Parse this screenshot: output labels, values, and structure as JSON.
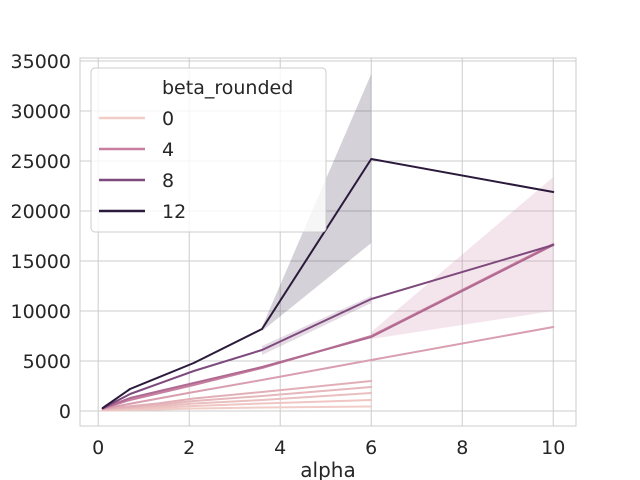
{
  "chart_data": {
    "type": "line",
    "title": "",
    "xlabel": "alpha",
    "ylabel": "",
    "xlim": [
      -0.4,
      10.5
    ],
    "ylim": [
      -1500,
      35300
    ],
    "x_ticks": [
      0,
      2,
      4,
      6,
      8,
      10
    ],
    "y_ticks": [
      0,
      5000,
      10000,
      15000,
      20000,
      25000,
      30000,
      35000
    ],
    "grid": true,
    "legend": {
      "title": "beta_rounded",
      "position": "top-left"
    },
    "series": [
      {
        "name": "0",
        "color": "#f1cdc8",
        "legend": true,
        "x": [
          0.1,
          1.3,
          2.1,
          3.6,
          6.0
        ],
        "y": [
          50,
          150,
          250,
          350,
          450
        ]
      },
      {
        "name": "",
        "color": "#efc6c3",
        "legend": false,
        "x": [
          0.1,
          1.3,
          2.1,
          3.6,
          6.0
        ],
        "y": [
          80,
          300,
          500,
          750,
          1100
        ]
      },
      {
        "name": "",
        "color": "#eabfbf",
        "legend": false,
        "x": [
          0.1,
          1.3,
          2.1,
          3.6,
          6.0
        ],
        "y": [
          120,
          450,
          750,
          1100,
          1800
        ]
      },
      {
        "name": "",
        "color": "#e6b7bb",
        "legend": false,
        "x": [
          0.1,
          1.3,
          2.1,
          3.6,
          6.0
        ],
        "y": [
          160,
          600,
          1000,
          1500,
          2400
        ]
      },
      {
        "name": "",
        "color": "#e2afb7",
        "legend": false,
        "x": [
          0.1,
          1.3,
          2.1,
          3.6,
          6.0
        ],
        "y": [
          200,
          750,
          1250,
          1900,
          3000
        ]
      },
      {
        "name": "",
        "color": "#d99fb0",
        "legend": false,
        "x": [
          0.1,
          2.1,
          3.6,
          6.0,
          10.0
        ],
        "y": [
          220,
          1900,
          3100,
          5100,
          8400
        ]
      },
      {
        "name": "4",
        "color": "#c87f9f",
        "legend": true,
        "x": [
          0.1,
          0.7,
          2.1,
          3.6,
          6.0,
          10.0
        ],
        "y": [
          250,
          1100,
          2600,
          4300,
          7500,
          16700
        ]
      },
      {
        "name": "",
        "color": "#b06a92",
        "legend": false,
        "x": [
          0.1,
          0.7,
          2.1,
          3.6,
          6.0,
          10.0
        ],
        "y": [
          260,
          1300,
          2800,
          4400,
          7400,
          16600
        ]
      },
      {
        "name": "8",
        "color": "#7e4a7d",
        "legend": true,
        "x": [
          0.1,
          0.7,
          2.1,
          3.6,
          6.0,
          10.0
        ],
        "y": [
          280,
          1700,
          4000,
          6100,
          11200,
          16600
        ]
      },
      {
        "name": "12",
        "color": "#2b1a3b",
        "legend": true,
        "x": [
          0.1,
          0.7,
          2.1,
          3.6,
          6.0,
          10.0
        ],
        "y": [
          300,
          2200,
          4800,
          8200,
          25200,
          21900
        ]
      }
    ],
    "bands": [
      {
        "series": "4",
        "color": "#c87f9f",
        "opacity": 0.2,
        "x": [
          6.0,
          10.0
        ],
        "lower": [
          7200,
          10000
        ],
        "upper": [
          7900,
          23400
        ]
      },
      {
        "series": "8",
        "color": "#7e4a7d",
        "opacity": 0.2,
        "x": [
          3.6,
          6.0
        ],
        "lower": [
          5600,
          10800
        ],
        "upper": [
          6500,
          11500
        ]
      },
      {
        "series": "12",
        "color": "#2b1a3b",
        "opacity": 0.2,
        "x": [
          3.6,
          6.0
        ],
        "lower": [
          8000,
          16800
        ],
        "upper": [
          8400,
          33700
        ]
      }
    ]
  }
}
